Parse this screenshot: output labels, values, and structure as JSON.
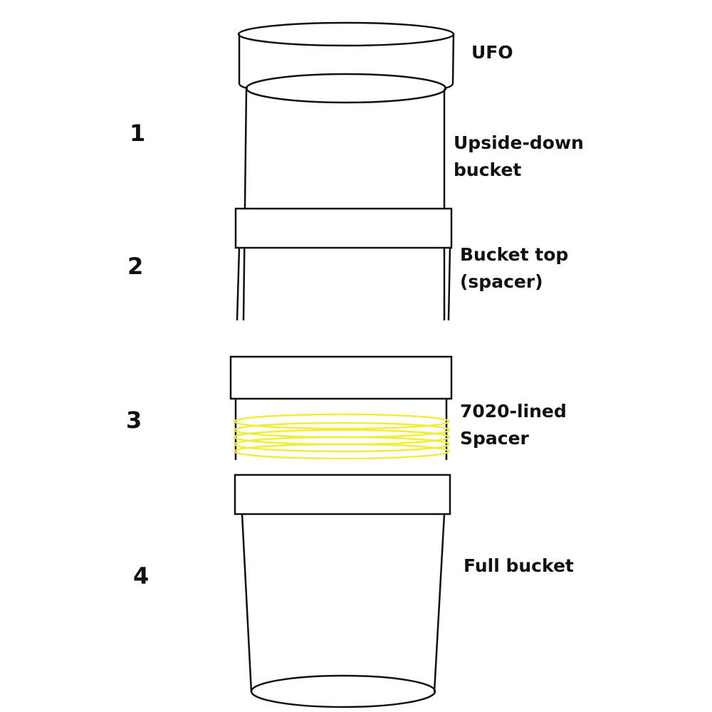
{
  "diagram": {
    "colors": {
      "ink": "#111111",
      "liner": "#f2ec3a",
      "background": "#ffffff"
    },
    "sections": [
      {
        "number": "1",
        "label_lines": [
          "UFO"
        ]
      },
      {
        "number": "",
        "label_lines": [
          "Upside-down",
          "bucket"
        ]
      },
      {
        "number": "2",
        "label_lines": [
          "Bucket top",
          "(spacer)"
        ]
      },
      {
        "number": "3",
        "label_lines": [
          "7020-lined",
          "Spacer"
        ]
      },
      {
        "number": "4",
        "label_lines": [
          "Full bucket"
        ]
      }
    ],
    "labels": {
      "ufo": "UFO",
      "upside_down_1": "Upside-down",
      "upside_down_2": "bucket",
      "bucket_top_1": "Bucket top",
      "bucket_top_2": "(spacer)",
      "lined_spacer_1": "7020-lined",
      "lined_spacer_2": "Spacer",
      "full_bucket": "Full bucket"
    },
    "numbers": {
      "n1": "1",
      "n2": "2",
      "n3": "3",
      "n4": "4"
    }
  }
}
